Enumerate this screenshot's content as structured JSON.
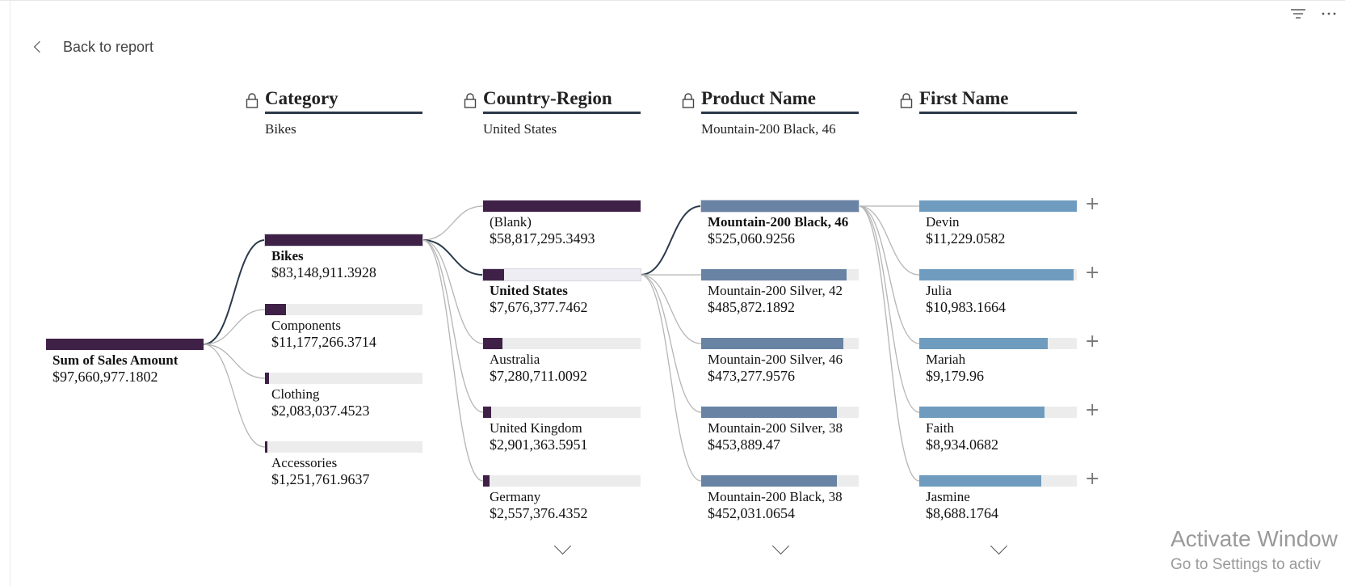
{
  "nav": {
    "back_label": "Back to report"
  },
  "icons": {
    "filter": "filter-icon",
    "more": "more-options-icon",
    "lock": "lock-icon",
    "expand": "plus-icon",
    "chevron": "chevron-down-icon"
  },
  "colors": {
    "dark_bar": "#3f2147",
    "blue_bar": "#6883a4",
    "light_blue_bar": "#6f9cbe",
    "track": "#ececec"
  },
  "root": {
    "label": "Sum of Sales Amount",
    "value": "$97,660,977.1802",
    "fraction": 1.0
  },
  "levels": [
    {
      "title": "Category",
      "selected": "Bikes",
      "nodes": [
        {
          "label": "Bikes",
          "value": "$83,148,911.3928",
          "fraction": 1.0,
          "selected": true
        },
        {
          "label": "Components",
          "value": "$11,177,266.3714",
          "fraction": 0.134
        },
        {
          "label": "Clothing",
          "value": "$2,083,037.4523",
          "fraction": 0.025
        },
        {
          "label": "Accessories",
          "value": "$1,251,761.9637",
          "fraction": 0.015
        }
      ]
    },
    {
      "title": "Country-Region",
      "selected": "United States",
      "nodes": [
        {
          "label": "(Blank)",
          "value": "$58,817,295.3493",
          "fraction": 1.0
        },
        {
          "label": "United States",
          "value": "$7,676,377.7462",
          "fraction": 0.131,
          "selected": true
        },
        {
          "label": "Australia",
          "value": "$7,280,711.0092",
          "fraction": 0.124
        },
        {
          "label": "United Kingdom",
          "value": "$2,901,363.5951",
          "fraction": 0.049
        },
        {
          "label": "Germany",
          "value": "$2,557,376.4352",
          "fraction": 0.043
        }
      ]
    },
    {
      "title": "Product Name",
      "selected": "Mountain-200 Black, 46",
      "nodes": [
        {
          "label": "Mountain-200 Black, 46",
          "value": "$525,060.9256",
          "fraction": 1.0,
          "selected": true
        },
        {
          "label": "Mountain-200 Silver, 42",
          "value": "$485,872.1892",
          "fraction": 0.925
        },
        {
          "label": "Mountain-200 Silver, 46",
          "value": "$473,277.9576",
          "fraction": 0.901
        },
        {
          "label": "Mountain-200 Silver, 38",
          "value": "$453,889.47",
          "fraction": 0.864
        },
        {
          "label": "Mountain-200 Black, 38",
          "value": "$452,031.0654",
          "fraction": 0.861
        }
      ]
    },
    {
      "title": "First Name",
      "selected": "",
      "nodes": [
        {
          "label": "Devin",
          "value": "$11,229.0582",
          "fraction": 1.0
        },
        {
          "label": "Julia",
          "value": "$10,983.1664",
          "fraction": 0.978
        },
        {
          "label": "Mariah",
          "value": "$9,179.96",
          "fraction": 0.817
        },
        {
          "label": "Faith",
          "value": "$8,934.0682",
          "fraction": 0.796
        },
        {
          "label": "Jasmine",
          "value": "$8,688.1764",
          "fraction": 0.774
        }
      ]
    }
  ],
  "watermark": {
    "line1": "Activate Window",
    "line2": "Go to Settings to activ"
  }
}
